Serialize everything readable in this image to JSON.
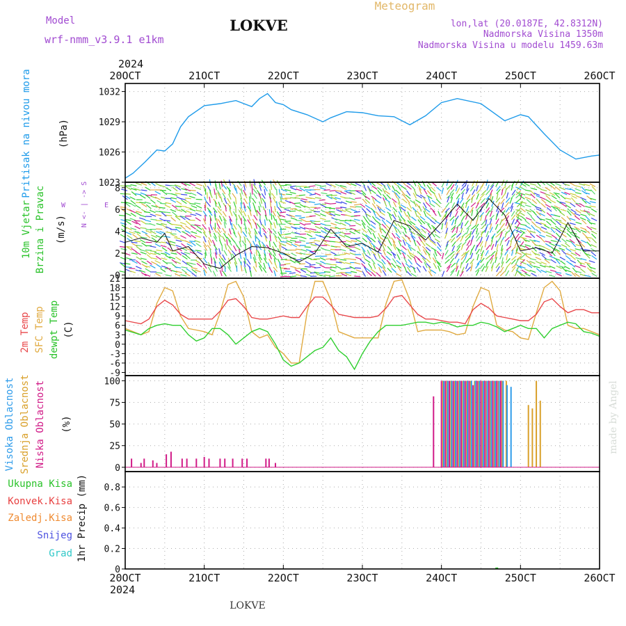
{
  "header": {
    "model_label": "Model",
    "model_name": "wrf-nmm_v3.9.1  e1km",
    "station": "LOKVE",
    "meteogram": "Meteogram",
    "lonlat": "lon,lat (20.0187E, 42.8312N)",
    "elev": "Nadmorska Visina 1350m",
    "elev_model": "Nadmorska Visina u modelu 1459.63m",
    "year_top": "2024",
    "year_bottom": "2024",
    "footer_station": "LOKVE",
    "credit": "made by Angel"
  },
  "colors": {
    "pressure": "#1e9bea",
    "temp2m": "#e8474a",
    "sfc": "#e0aa40",
    "dewpt": "#2fcf2f",
    "visoka": "#2f9cea",
    "srednja": "#d9a02a",
    "niska": "#d11a87",
    "kisa": "#29c229",
    "konvek": "#e84040",
    "zaledj": "#ef8a30",
    "snijeg": "#4d52e0",
    "grad": "#30c8c8",
    "title_orange": "#e2b768",
    "purple": "#a14bd1"
  },
  "time_axis": {
    "tick_labels": [
      "20OCT",
      "21OCT",
      "22OCT",
      "23OCT",
      "24OCT",
      "25OCT",
      "26OCT"
    ]
  },
  "panels": {
    "pressure": {
      "label": "Pritisak na nivou mora",
      "unit": "(hPa)",
      "ticks": [
        "1023",
        "1026",
        "1029",
        "1032"
      ]
    },
    "wind": {
      "label1": "10m Vjetar",
      "label2": "Brzina i Pravac",
      "unit": "(m/s)",
      "ticks": [
        "0",
        "2",
        "4",
        "6",
        "8"
      ],
      "compass_ns": "N <- | -> S",
      "compass_w": "W",
      "compass_e": "E"
    },
    "temp": {
      "label1": "2m Temp",
      "label2": "SFC Temp",
      "label3": "dewpt Temp",
      "unit": "(C)",
      "ticks": [
        "-9",
        "-6",
        "-3",
        "0",
        "3",
        "6",
        "9",
        "12",
        "15",
        "18",
        "21"
      ]
    },
    "cloud": {
      "label1": "Visoka Oblacnost",
      "label2": "Srednja Oblacnost",
      "label3": "Niska Oblacnost",
      "unit": "(%)",
      "ticks": [
        "0",
        "25",
        "50",
        "75",
        "100"
      ]
    },
    "precip": {
      "labels": [
        "Ukupna Kisa",
        "Konvek.Kisa",
        "Zaledj.Kisa",
        "Snijeg",
        "Grad"
      ],
      "unit": "1hr Precip (mm)",
      "ticks": [
        "0",
        "0.2",
        "0.4",
        "0.6",
        "0.8"
      ]
    }
  },
  "chart_data": [
    {
      "type": "line",
      "title": "Pritisak na nivou mora",
      "ylabel": "(hPa)",
      "ylim": [
        1023,
        1032.8
      ],
      "x": [
        20.0,
        20.1,
        20.25,
        20.4,
        20.5,
        20.6,
        20.7,
        20.8,
        21.0,
        21.2,
        21.4,
        21.6,
        21.7,
        21.8,
        21.9,
        22.0,
        22.1,
        22.3,
        22.5,
        22.6,
        22.8,
        23.0,
        23.2,
        23.4,
        23.6,
        23.8,
        24.0,
        24.2,
        24.5,
        24.8,
        25.0,
        25.1,
        25.3,
        25.5,
        25.7,
        25.9,
        26.0
      ],
      "series": [
        {
          "values": [
            1023.4,
            1023.9,
            1025.0,
            1026.2,
            1026.1,
            1026.8,
            1028.5,
            1029.5,
            1030.6,
            1030.8,
            1031.1,
            1030.5,
            1031.3,
            1031.8,
            1030.9,
            1030.7,
            1030.2,
            1029.7,
            1029.0,
            1029.4,
            1030.0,
            1029.9,
            1029.6,
            1029.5,
            1028.7,
            1029.6,
            1030.9,
            1031.3,
            1030.8,
            1029.1,
            1029.7,
            1029.5,
            1027.8,
            1026.2,
            1025.3,
            1025.6,
            1025.7
          ]
        }
      ]
    },
    {
      "type": "line",
      "title": "10m Vjetar Brzina i Pravac",
      "ylabel": "(m/s)",
      "ylim": [
        -0.3,
        8.5
      ],
      "x": [
        20.0,
        20.2,
        20.4,
        20.5,
        20.6,
        20.8,
        21.0,
        21.2,
        21.4,
        21.6,
        21.8,
        22.0,
        22.2,
        22.4,
        22.6,
        22.8,
        23.0,
        23.2,
        23.4,
        23.6,
        23.8,
        24.0,
        24.2,
        24.4,
        24.6,
        24.8,
        25.0,
        25.2,
        25.4,
        25.6,
        25.8,
        26.0
      ],
      "series": [
        {
          "values": [
            3.0,
            3.4,
            3.0,
            3.8,
            2.2,
            2.6,
            1.0,
            0.6,
            1.8,
            2.6,
            2.5,
            2.0,
            1.2,
            2.0,
            4.2,
            2.6,
            2.9,
            2.1,
            5.0,
            4.5,
            3.2,
            4.8,
            6.5,
            5.0,
            7.0,
            5.5,
            2.2,
            2.5,
            2.0,
            4.8,
            2.2,
            2.2
          ]
        }
      ]
    },
    {
      "type": "line",
      "title": "2m Temp / SFC Temp / dewpt Temp",
      "ylabel": "(C)",
      "ylim": [
        -10,
        21
      ],
      "x": [
        20.0,
        20.2,
        20.3,
        20.4,
        20.5,
        20.6,
        20.7,
        20.8,
        20.9,
        21.0,
        21.1,
        21.2,
        21.3,
        21.4,
        21.5,
        21.6,
        21.7,
        21.8,
        21.9,
        22.0,
        22.1,
        22.2,
        22.3,
        22.4,
        22.5,
        22.6,
        22.7,
        22.8,
        22.9,
        23.0,
        23.1,
        23.2,
        23.3,
        23.4,
        23.5,
        23.6,
        23.7,
        23.8,
        23.9,
        24.0,
        24.1,
        24.2,
        24.3,
        24.4,
        24.5,
        24.6,
        24.7,
        24.8,
        24.9,
        25.0,
        25.1,
        25.2,
        25.3,
        25.4,
        25.5,
        25.6,
        25.7,
        25.8,
        25.9,
        26.0
      ],
      "series": [
        {
          "name": "2m Temp",
          "values": [
            7.5,
            6.5,
            8.0,
            12.0,
            14.0,
            12.5,
            9.5,
            8.0,
            8.0,
            8.0,
            8.0,
            10.5,
            14.0,
            14.5,
            12.0,
            8.5,
            8.0,
            8.0,
            8.5,
            9.0,
            8.5,
            8.5,
            12.0,
            15.0,
            15.0,
            12.5,
            9.5,
            9.0,
            8.5,
            8.5,
            8.5,
            9.0,
            11.5,
            15.0,
            15.5,
            12.5,
            9.5,
            8.0,
            8.0,
            7.5,
            7.0,
            7.0,
            6.5,
            11.0,
            13.0,
            11.5,
            9.0,
            8.5,
            8.0,
            7.5,
            7.5,
            9.5,
            13.5,
            14.5,
            12.0,
            10.0,
            11.0,
            11.0,
            10.0,
            10.0
          ]
        },
        {
          "name": "SFC Temp",
          "values": [
            5.0,
            3.0,
            4.0,
            13.0,
            18.0,
            17.0,
            9.0,
            5.0,
            4.5,
            4.0,
            3.0,
            10.0,
            19.0,
            20.0,
            15.0,
            4.0,
            2.0,
            3.0,
            -1.0,
            -3.0,
            -6.0,
            -6.0,
            10.0,
            20.0,
            20.0,
            14.0,
            4.0,
            3.0,
            2.0,
            2.0,
            2.0,
            2.0,
            13.0,
            20.0,
            20.5,
            14.0,
            4.0,
            4.5,
            4.5,
            4.5,
            4.0,
            3.0,
            3.5,
            12.0,
            18.0,
            17.0,
            6.0,
            4.5,
            4.0,
            2.0,
            1.5,
            10.0,
            18.0,
            20.0,
            17.0,
            6.0,
            5.0,
            5.0,
            4.0,
            3.0
          ]
        },
        {
          "name": "dewpt Temp",
          "values": [
            4.5,
            3.0,
            5.0,
            6.0,
            6.5,
            6.0,
            6.0,
            3.0,
            1.0,
            2.0,
            5.0,
            5.0,
            3.0,
            0.0,
            2.0,
            4.0,
            5.0,
            4.0,
            0.0,
            -5.0,
            -7.0,
            -6.0,
            -4.0,
            -2.0,
            -1.0,
            2.0,
            -2.0,
            -4.0,
            -8.0,
            -3.0,
            1.0,
            4.0,
            6.0,
            6.0,
            6.0,
            6.5,
            7.0,
            7.0,
            6.5,
            7.0,
            6.5,
            5.5,
            6.0,
            6.0,
            7.0,
            6.5,
            5.5,
            4.0,
            5.0,
            6.0,
            5.0,
            5.0,
            2.0,
            5.0,
            6.0,
            7.0,
            6.5,
            4.0,
            3.5,
            2.5
          ]
        }
      ]
    },
    {
      "type": "bar",
      "title": "Oblacnost",
      "ylabel": "(%)",
      "ylim": [
        0,
        100
      ],
      "series": [
        {
          "name": "Niska Oblacnost",
          "x": [
            20.08,
            20.2,
            20.24,
            20.35,
            20.4,
            20.52,
            20.58,
            20.72,
            20.78,
            20.9,
            21.0,
            21.06,
            21.2,
            21.26,
            21.36,
            21.48,
            21.54,
            21.78,
            21.82,
            21.9,
            23.9,
            24.0,
            24.05,
            24.1,
            24.15,
            24.2,
            24.25,
            24.3,
            24.35,
            24.4,
            24.45,
            24.5,
            24.55,
            24.6,
            24.65,
            24.7,
            24.75
          ],
          "values": [
            10,
            5,
            10,
            8,
            5,
            15,
            18,
            10,
            10,
            10,
            12,
            10,
            10,
            10,
            10,
            10,
            10,
            10,
            10,
            5,
            82,
            100,
            100,
            100,
            100,
            100,
            100,
            100,
            100,
            95,
            100,
            100,
            100,
            100,
            100,
            100,
            100
          ]
        },
        {
          "name": "Srednja Oblacnost",
          "x": [
            24.02,
            24.07,
            24.12,
            24.17,
            24.22,
            24.27,
            24.32,
            24.37,
            24.42,
            24.47,
            24.52,
            24.57,
            24.62,
            24.67,
            24.72,
            24.77,
            24.82,
            25.1,
            25.15,
            25.2,
            25.25
          ],
          "values": [
            100,
            100,
            100,
            100,
            100,
            100,
            100,
            100,
            100,
            100,
            100,
            100,
            100,
            100,
            100,
            100,
            100,
            72,
            68,
            100,
            77
          ]
        },
        {
          "name": "Visoka Oblacnost",
          "x": [
            24.03,
            24.08,
            24.13,
            24.18,
            24.23,
            24.28,
            24.33,
            24.38,
            24.43,
            24.48,
            24.53,
            24.58,
            24.63,
            24.68,
            24.73,
            24.78,
            24.83,
            24.88
          ],
          "values": [
            100,
            100,
            100,
            100,
            100,
            100,
            100,
            100,
            100,
            100,
            100,
            100,
            100,
            100,
            100,
            100,
            95,
            93
          ]
        }
      ]
    },
    {
      "type": "bar",
      "title": "1hr Precip",
      "ylabel": "(mm)",
      "ylim": [
        0,
        0.95
      ],
      "series": [
        {
          "name": "Ukupna Kisa",
          "x": [
            24.7
          ],
          "values": [
            0.0
          ]
        }
      ]
    }
  ]
}
